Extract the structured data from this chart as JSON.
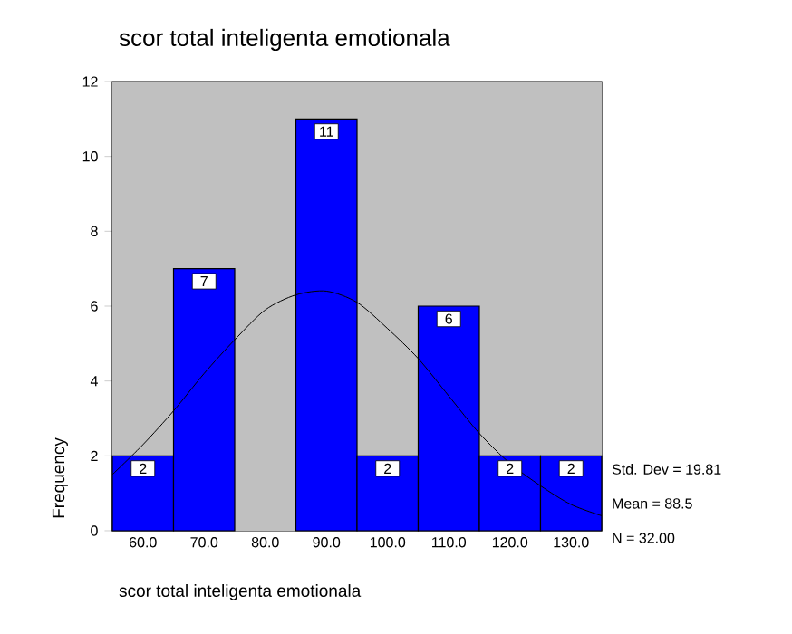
{
  "chart_data": {
    "type": "histogram",
    "title": "scor total inteligenta emotionala",
    "xlabel": "scor total inteligenta emotionala",
    "ylabel": "Frequency",
    "bins": [
      55,
      65,
      75,
      85,
      95,
      105,
      115,
      125,
      135
    ],
    "series": [
      {
        "color": "#0000ff",
        "values": [
          2,
          7,
          0,
          11,
          2,
          6,
          2,
          2
        ],
        "value_labels": [
          "2",
          "7",
          null,
          "11",
          "2",
          "6",
          "2",
          "2"
        ]
      },
      {
        "type": "line",
        "color": "#000000",
        "x": [
          55,
          60,
          65,
          70,
          75,
          80,
          85,
          90,
          95,
          100,
          105,
          110,
          115,
          120,
          125,
          130,
          135
        ],
        "values": [
          1.5,
          2.3,
          3.2,
          4.2,
          5.1,
          5.9,
          6.3,
          6.4,
          6.1,
          5.4,
          4.6,
          3.6,
          2.6,
          1.8,
          1.2,
          0.7,
          0.4
        ]
      }
    ],
    "xlim": [
      55,
      135
    ],
    "ylim": [
      0,
      12
    ],
    "xticks": [
      {
        "value": 60,
        "label": "60.0"
      },
      {
        "value": 70,
        "label": "70.0"
      },
      {
        "value": 80,
        "label": "80.0"
      },
      {
        "value": 90,
        "label": "90.0"
      },
      {
        "value": 100,
        "label": "100.0"
      },
      {
        "value": 110,
        "label": "110.0"
      },
      {
        "value": 120,
        "label": "120.0"
      },
      {
        "value": 130,
        "label": "130.0"
      }
    ],
    "yticks": [
      0,
      2,
      4,
      6,
      8,
      10,
      12
    ],
    "annotations": [
      "Std. Dev = 19.81",
      "Mean = 88.5",
      "N = 32.00"
    ]
  }
}
